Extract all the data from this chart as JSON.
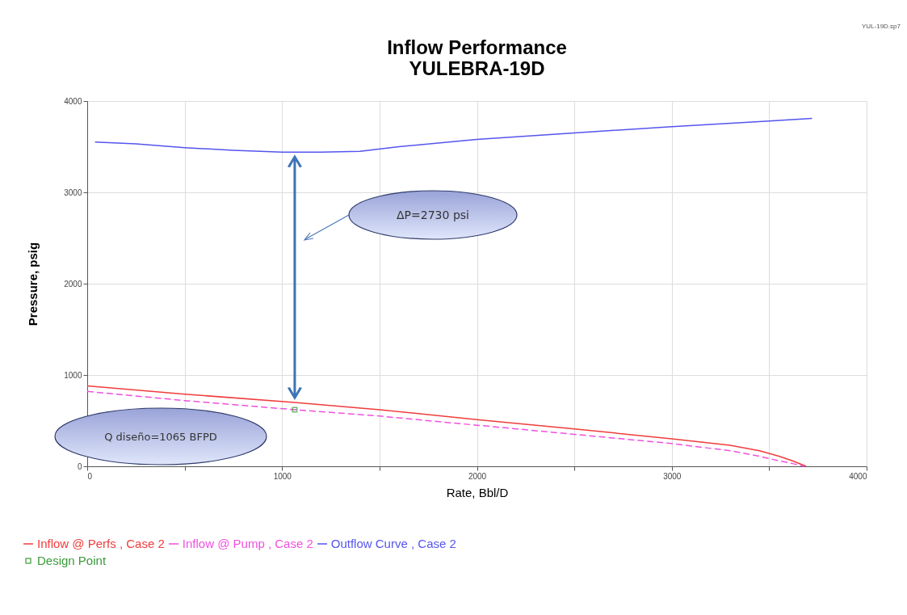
{
  "chart_data": {
    "type": "line",
    "title": "Inflow Performance",
    "subtitle": "YULEBRA-19D",
    "xlabel": "Rate, Bbl/D",
    "ylabel": "Pressure, psig",
    "xlim": [
      0,
      4000
    ],
    "ylim": [
      0,
      4000
    ],
    "xticks": [
      0,
      {
        "value": 500,
        "label": null
      },
      1000,
      {
        "value": 1500,
        "label": null
      },
      2000,
      {
        "value": 2500,
        "label": null
      },
      3000,
      {
        "value": 3500,
        "label": null
      },
      4000
    ],
    "yticks": [
      0,
      1000,
      2000,
      3000,
      4000
    ],
    "grid": true,
    "legend": "bottom left",
    "series": [
      {
        "name": "Inflow @ Perfs , Case 2",
        "color": "#f03c3c",
        "line_style": "solid",
        "x": [
          0,
          500,
          1065,
          1500,
          2000,
          2500,
          3000,
          3300,
          3450,
          3550,
          3620,
          3690
        ],
        "values": [
          880,
          790,
          700,
          620,
          510,
          410,
          300,
          230,
          170,
          110,
          60,
          0
        ]
      },
      {
        "name": "Inflow @ Pump , Case 2",
        "color": "#f050e0",
        "line_style": "dashed",
        "x": [
          0,
          500,
          1065,
          1500,
          2000,
          2500,
          3000,
          3300,
          3450,
          3550,
          3620,
          3680
        ],
        "values": [
          820,
          720,
          620,
          550,
          450,
          350,
          250,
          170,
          110,
          60,
          30,
          0
        ]
      },
      {
        "name": "Outflow Curve , Case 2",
        "color": "#5555ee",
        "line_style": "solid",
        "x": [
          40,
          250,
          500,
          750,
          1000,
          1065,
          1200,
          1400,
          1600,
          2000,
          2500,
          3000,
          3500,
          3720
        ],
        "values": [
          3550,
          3530,
          3490,
          3460,
          3440,
          3440,
          3440,
          3450,
          3500,
          3580,
          3650,
          3720,
          3780,
          3810
        ]
      },
      {
        "name": "Design Point",
        "type": "scatter",
        "marker": "square",
        "color": "#3a9a3a",
        "x": [
          1065
        ],
        "values": [
          620
        ]
      }
    ],
    "annotations": [
      "ΔP=2730 psi",
      "Q diseño=1065 BFPD",
      "YUL-19D.sp7"
    ]
  }
}
